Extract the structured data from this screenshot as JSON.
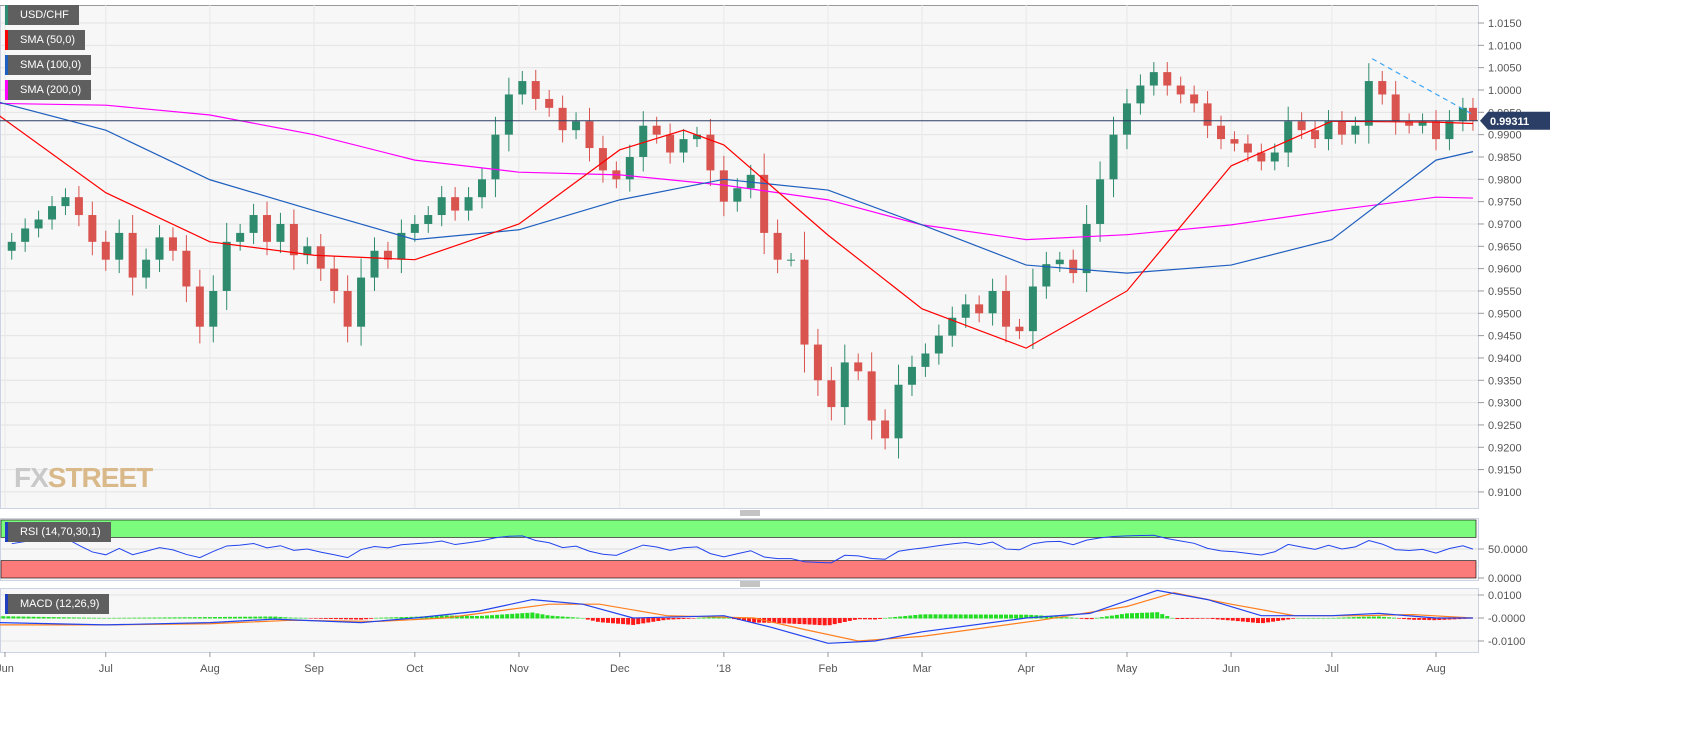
{
  "chart_data": {
    "type": "candlestick",
    "symbol": "USD/CHF",
    "legend": [
      "USD/CHF",
      "SMA (50,0)",
      "SMA (100,0)",
      "SMA (200,0)"
    ],
    "colors": {
      "up": "#2e8b6e",
      "down": "#d9534f",
      "sma50": "#ff0000",
      "sma100": "#1f5fbf",
      "sma200": "#ff00ff",
      "last": "#2b3f66",
      "trend": "#3da5f4"
    },
    "last_price": 0.99311,
    "last_price_label": "0.99311",
    "ylim": [
      0.906,
      1.018
    ],
    "yticks": [
      "1.0150",
      "1.0100",
      "1.0050",
      "1.0000",
      "0.9950",
      "0.9900",
      "0.9850",
      "0.9800",
      "0.9750",
      "0.9700",
      "0.9650",
      "0.9600",
      "0.9550",
      "0.9500",
      "0.9450",
      "0.9400",
      "0.9350",
      "0.9300",
      "0.9250",
      "0.9200",
      "0.9150",
      "0.9100"
    ],
    "xticks": [
      {
        "label": "Jun",
        "date": "2017-06-01"
      },
      {
        "label": "Jul",
        "date": "2017-07-01"
      },
      {
        "label": "Aug",
        "date": "2017-08-01"
      },
      {
        "label": "Sep",
        "date": "2017-09-01"
      },
      {
        "label": "Oct",
        "date": "2017-10-01"
      },
      {
        "label": "Nov",
        "date": "2017-11-01"
      },
      {
        "label": "Dec",
        "date": "2017-12-01"
      },
      {
        "label": "'18",
        "date": "2018-01-01"
      },
      {
        "label": "Feb",
        "date": "2018-02-01"
      },
      {
        "label": "Mar",
        "date": "2018-03-01"
      },
      {
        "label": "Apr",
        "date": "2018-04-01"
      },
      {
        "label": "May",
        "date": "2018-05-01"
      },
      {
        "label": "Jun",
        "date": "2018-06-01"
      },
      {
        "label": "Jul",
        "date": "2018-07-01"
      },
      {
        "label": "Aug",
        "date": "2018-08-01"
      }
    ],
    "closes": [
      [
        "2017-05-30",
        0.964
      ],
      [
        "2017-06-03",
        0.966
      ],
      [
        "2017-06-07",
        0.969
      ],
      [
        "2017-06-11",
        0.971
      ],
      [
        "2017-06-15",
        0.974
      ],
      [
        "2017-06-19",
        0.976
      ],
      [
        "2017-06-23",
        0.972
      ],
      [
        "2017-06-27",
        0.966
      ],
      [
        "2017-07-01",
        0.962
      ],
      [
        "2017-07-05",
        0.968
      ],
      [
        "2017-07-09",
        0.958
      ],
      [
        "2017-07-13",
        0.962
      ],
      [
        "2017-07-17",
        0.967
      ],
      [
        "2017-07-21",
        0.964
      ],
      [
        "2017-07-25",
        0.956
      ],
      [
        "2017-07-29",
        0.947
      ],
      [
        "2017-08-02",
        0.955
      ],
      [
        "2017-08-06",
        0.966
      ],
      [
        "2017-08-10",
        0.968
      ],
      [
        "2017-08-14",
        0.972
      ],
      [
        "2017-08-18",
        0.966
      ],
      [
        "2017-08-22",
        0.97
      ],
      [
        "2017-08-26",
        0.963
      ],
      [
        "2017-08-30",
        0.965
      ],
      [
        "2017-09-03",
        0.96
      ],
      [
        "2017-09-07",
        0.955
      ],
      [
        "2017-09-11",
        0.947
      ],
      [
        "2017-09-15",
        0.958
      ],
      [
        "2017-09-19",
        0.964
      ],
      [
        "2017-09-23",
        0.962
      ],
      [
        "2017-09-27",
        0.968
      ],
      [
        "2017-10-01",
        0.97
      ],
      [
        "2017-10-05",
        0.972
      ],
      [
        "2017-10-09",
        0.976
      ],
      [
        "2017-10-13",
        0.973
      ],
      [
        "2017-10-17",
        0.976
      ],
      [
        "2017-10-21",
        0.98
      ],
      [
        "2017-10-25",
        0.99
      ],
      [
        "2017-10-29",
        0.999
      ],
      [
        "2017-11-02",
        1.002
      ],
      [
        "2017-11-06",
        0.998
      ],
      [
        "2017-11-10",
        0.996
      ],
      [
        "2017-11-14",
        0.991
      ],
      [
        "2017-11-18",
        0.993
      ],
      [
        "2017-11-22",
        0.987
      ],
      [
        "2017-11-26",
        0.982
      ],
      [
        "2017-11-30",
        0.98
      ],
      [
        "2017-12-04",
        0.985
      ],
      [
        "2017-12-08",
        0.992
      ],
      [
        "2017-12-12",
        0.99
      ],
      [
        "2017-12-16",
        0.986
      ],
      [
        "2017-12-20",
        0.989
      ],
      [
        "2017-12-24",
        0.99
      ],
      [
        "2017-12-28",
        0.982
      ],
      [
        "2018-01-01",
        0.975
      ],
      [
        "2018-01-05",
        0.978
      ],
      [
        "2018-01-09",
        0.981
      ],
      [
        "2018-01-13",
        0.968
      ],
      [
        "2018-01-17",
        0.962
      ],
      [
        "2018-01-21",
        0.962
      ],
      [
        "2018-01-25",
        0.943
      ],
      [
        "2018-01-29",
        0.935
      ],
      [
        "2018-02-02",
        0.929
      ],
      [
        "2018-02-06",
        0.939
      ],
      [
        "2018-02-10",
        0.937
      ],
      [
        "2018-02-14",
        0.926
      ],
      [
        "2018-02-18",
        0.922
      ],
      [
        "2018-02-22",
        0.934
      ],
      [
        "2018-02-26",
        0.938
      ],
      [
        "2018-03-02",
        0.941
      ],
      [
        "2018-03-06",
        0.945
      ],
      [
        "2018-03-10",
        0.949
      ],
      [
        "2018-03-14",
        0.952
      ],
      [
        "2018-03-18",
        0.95
      ],
      [
        "2018-03-22",
        0.955
      ],
      [
        "2018-03-26",
        0.947
      ],
      [
        "2018-03-30",
        0.946
      ],
      [
        "2018-04-03",
        0.956
      ],
      [
        "2018-04-07",
        0.961
      ],
      [
        "2018-04-11",
        0.962
      ],
      [
        "2018-04-15",
        0.959
      ],
      [
        "2018-04-19",
        0.97
      ],
      [
        "2018-04-23",
        0.98
      ],
      [
        "2018-04-27",
        0.99
      ],
      [
        "2018-05-01",
        0.997
      ],
      [
        "2018-05-05",
        1.001
      ],
      [
        "2018-05-09",
        1.004
      ],
      [
        "2018-05-13",
        1.001
      ],
      [
        "2018-05-17",
        0.999
      ],
      [
        "2018-05-21",
        0.997
      ],
      [
        "2018-05-25",
        0.992
      ],
      [
        "2018-05-29",
        0.989
      ],
      [
        "2018-06-02",
        0.988
      ],
      [
        "2018-06-06",
        0.986
      ],
      [
        "2018-06-10",
        0.984
      ],
      [
        "2018-06-14",
        0.986
      ],
      [
        "2018-06-18",
        0.993
      ],
      [
        "2018-06-22",
        0.991
      ],
      [
        "2018-06-26",
        0.989
      ],
      [
        "2018-06-30",
        0.993
      ],
      [
        "2018-07-04",
        0.99
      ],
      [
        "2018-07-08",
        0.992
      ],
      [
        "2018-07-12",
        1.002
      ],
      [
        "2018-07-16",
        0.999
      ],
      [
        "2018-07-20",
        0.993
      ],
      [
        "2018-07-24",
        0.992
      ],
      [
        "2018-07-28",
        0.993
      ],
      [
        "2018-08-01",
        0.989
      ],
      [
        "2018-08-05",
        0.993
      ],
      [
        "2018-08-09",
        0.996
      ],
      [
        "2018-08-12",
        0.9931
      ]
    ],
    "sma50": [
      [
        "2017-05-30",
        0.9944
      ],
      [
        "2017-07-01",
        0.977
      ],
      [
        "2017-08-01",
        0.966
      ],
      [
        "2017-09-01",
        0.963
      ],
      [
        "2017-10-01",
        0.962
      ],
      [
        "2017-11-01",
        0.97
      ],
      [
        "2017-12-01",
        0.9866
      ],
      [
        "2017-12-20",
        0.991
      ],
      [
        "2018-01-01",
        0.9877
      ],
      [
        "2018-02-01",
        0.9675
      ],
      [
        "2018-03-01",
        0.951
      ],
      [
        "2018-04-01",
        0.9422
      ],
      [
        "2018-05-01",
        0.955
      ],
      [
        "2018-06-01",
        0.983
      ],
      [
        "2018-07-01",
        0.993
      ],
      [
        "2018-08-01",
        0.9928
      ],
      [
        "2018-08-12",
        0.9925
      ]
    ],
    "sma100": [
      [
        "2017-05-30",
        0.9973
      ],
      [
        "2017-07-01",
        0.991
      ],
      [
        "2017-08-01",
        0.9799
      ],
      [
        "2017-09-01",
        0.973
      ],
      [
        "2017-10-01",
        0.9665
      ],
      [
        "2017-11-01",
        0.9687
      ],
      [
        "2017-12-01",
        0.9754
      ],
      [
        "2018-01-01",
        0.98
      ],
      [
        "2018-02-01",
        0.9776
      ],
      [
        "2018-03-01",
        0.9698
      ],
      [
        "2018-04-01",
        0.9608
      ],
      [
        "2018-05-01",
        0.959
      ],
      [
        "2018-06-01",
        0.9608
      ],
      [
        "2018-07-01",
        0.9665
      ],
      [
        "2018-08-01",
        0.9843
      ],
      [
        "2018-08-12",
        0.9862
      ]
    ],
    "sma200": [
      [
        "2017-05-30",
        0.997
      ],
      [
        "2017-07-01",
        0.9966
      ],
      [
        "2017-08-01",
        0.9944
      ],
      [
        "2017-09-01",
        0.99
      ],
      [
        "2017-10-01",
        0.9843
      ],
      [
        "2017-11-01",
        0.9816
      ],
      [
        "2017-12-01",
        0.981
      ],
      [
        "2018-01-01",
        0.9787
      ],
      [
        "2018-02-01",
        0.9754
      ],
      [
        "2018-03-01",
        0.9698
      ],
      [
        "2018-04-01",
        0.9665
      ],
      [
        "2018-05-01",
        0.9676
      ],
      [
        "2018-06-01",
        0.9698
      ],
      [
        "2018-07-01",
        0.973
      ],
      [
        "2018-08-01",
        0.976
      ],
      [
        "2018-08-12",
        0.9758
      ]
    ],
    "trendline": [
      [
        "2018-07-13",
        1.007
      ],
      [
        "2018-08-12",
        0.9945
      ]
    ],
    "rsi": {
      "label": "RSI (14,70,30,1)",
      "ylim": [
        0,
        100
      ],
      "overbought": 70,
      "oversold": 30,
      "yticks": [
        "50.0000",
        "0.0000"
      ]
    },
    "macd": {
      "label": "MACD (12,26,9)",
      "ylim": [
        -0.015,
        0.015
      ],
      "yticks": [
        "0.0100",
        "-0.0000",
        "-0.0100"
      ],
      "macd": [
        [
          "2017-05-30",
          -0.002
        ],
        [
          "2017-07-01",
          -0.003
        ],
        [
          "2017-08-01",
          -0.002
        ],
        [
          "2017-08-20",
          -0.0005
        ],
        [
          "2017-09-15",
          -0.002
        ],
        [
          "2017-10-01",
          0.0
        ],
        [
          "2017-10-20",
          0.003
        ],
        [
          "2017-11-05",
          0.008
        ],
        [
          "2017-11-20",
          0.006
        ],
        [
          "2017-12-05",
          0.0
        ],
        [
          "2018-01-01",
          0.001
        ],
        [
          "2018-01-15",
          -0.004
        ],
        [
          "2018-02-01",
          -0.011
        ],
        [
          "2018-02-15",
          -0.01
        ],
        [
          "2018-03-01",
          -0.006
        ],
        [
          "2018-04-01",
          0.0
        ],
        [
          "2018-04-20",
          0.002
        ],
        [
          "2018-05-10",
          0.012
        ],
        [
          "2018-05-25",
          0.008
        ],
        [
          "2018-06-10",
          0.001
        ],
        [
          "2018-07-01",
          0.001
        ],
        [
          "2018-07-15",
          0.002
        ],
        [
          "2018-08-01",
          0.0
        ],
        [
          "2018-08-12",
          0.0
        ]
      ],
      "signal": [
        [
          "2017-05-30",
          -0.003
        ],
        [
          "2017-07-01",
          -0.003
        ],
        [
          "2017-08-01",
          -0.0025
        ],
        [
          "2017-08-25",
          -0.001
        ],
        [
          "2017-09-20",
          -0.0015
        ],
        [
          "2017-10-10",
          0.0
        ],
        [
          "2017-11-10",
          0.006
        ],
        [
          "2017-11-25",
          0.006
        ],
        [
          "2017-12-15",
          0.001
        ],
        [
          "2018-01-10",
          0.0
        ],
        [
          "2018-01-25",
          -0.005
        ],
        [
          "2018-02-10",
          -0.01
        ],
        [
          "2018-03-01",
          -0.008
        ],
        [
          "2018-04-05",
          -0.001
        ],
        [
          "2018-05-01",
          0.005
        ],
        [
          "2018-05-15",
          0.011
        ],
        [
          "2018-06-01",
          0.006
        ],
        [
          "2018-06-20",
          0.001
        ],
        [
          "2018-07-10",
          0.001
        ],
        [
          "2018-07-25",
          0.0015
        ],
        [
          "2018-08-12",
          0.0
        ]
      ]
    },
    "watermark": "FXSTREET"
  }
}
